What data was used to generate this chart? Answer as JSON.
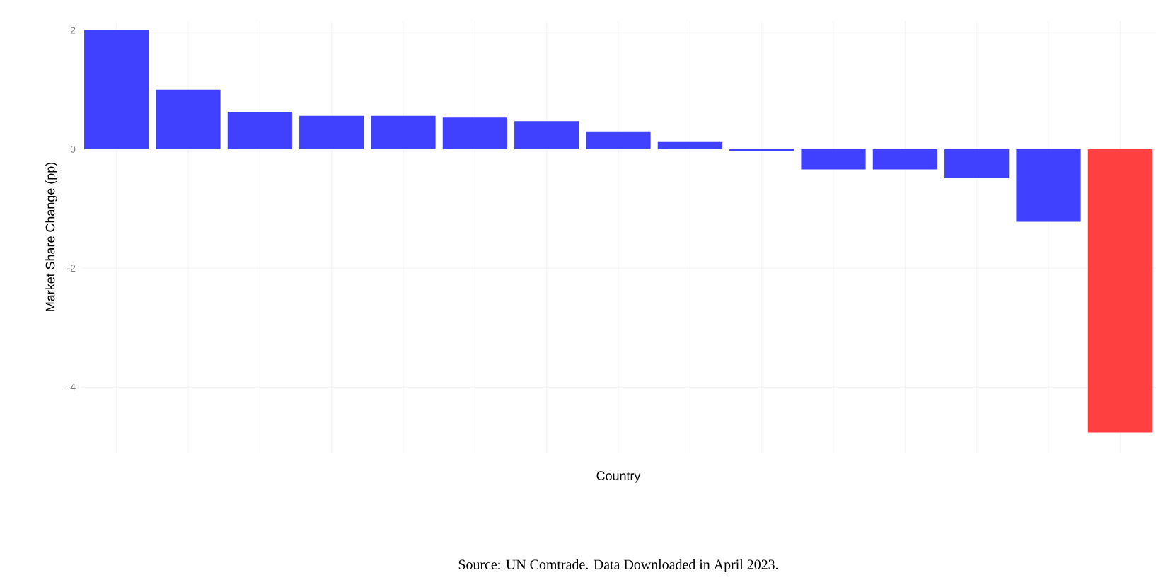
{
  "chart_data": {
    "type": "bar",
    "xlabel": "Country",
    "ylabel": "Market Share Change (pp)",
    "annotations": [
      "Source: UN Comtrade. Data Downloaded in April 2023."
    ],
    "categories": [
      null,
      null,
      null,
      null,
      null,
      null,
      null,
      null,
      null,
      null,
      null,
      null,
      null,
      null,
      null
    ],
    "values": [
      2.0,
      1.0,
      0.63,
      0.56,
      0.56,
      0.53,
      0.47,
      0.3,
      0.12,
      -0.03,
      -0.34,
      -0.34,
      -0.49,
      -1.22,
      -4.76
    ],
    "colors": [
      "#4040ff",
      "#4040ff",
      "#4040ff",
      "#4040ff",
      "#4040ff",
      "#4040ff",
      "#4040ff",
      "#4040ff",
      "#4040ff",
      "#4040ff",
      "#4040ff",
      "#4040ff",
      "#4040ff",
      "#4040ff",
      "#ff4040"
    ],
    "ylim": [
      -5.1,
      2.15
    ],
    "yticks": [
      -4,
      -2,
      0,
      2
    ],
    "grid": true
  }
}
